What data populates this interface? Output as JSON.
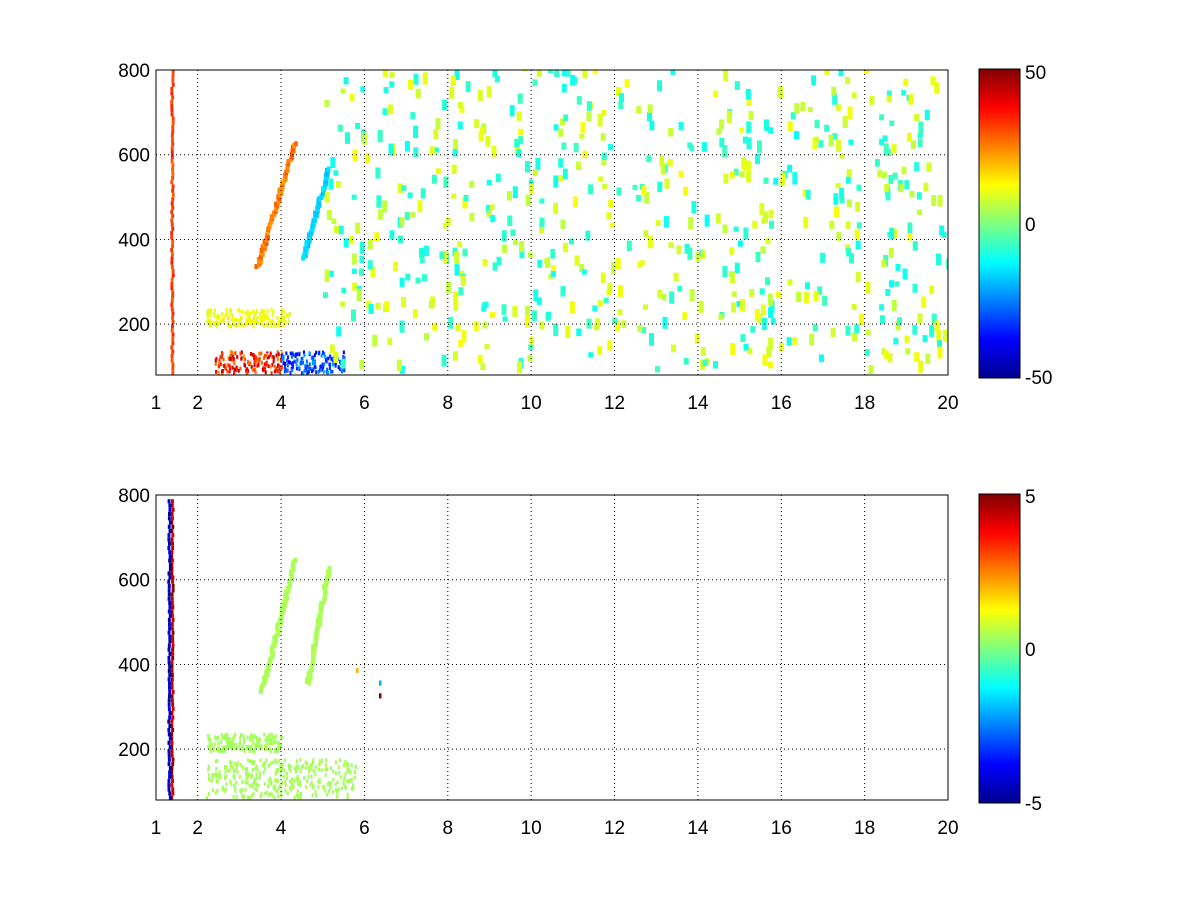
{
  "chart_data": [
    {
      "type": "heatmap",
      "title": "",
      "xlabel": "",
      "ylabel": "",
      "xlim": [
        1,
        20
      ],
      "ylim": [
        80,
        800
      ],
      "xticks": [
        "1",
        "2",
        "4",
        "6",
        "8",
        "10",
        "12",
        "14",
        "16",
        "18",
        "20"
      ],
      "yticks": [
        "200",
        "400",
        "600",
        "800"
      ],
      "grid": true,
      "colormap": "jet",
      "colorbar": {
        "min": -50,
        "max": 50,
        "labels": [
          "50",
          "0",
          "-50"
        ]
      },
      "features": [
        {
          "kind": "ridge",
          "x": 1.4,
          "y": [
            80,
            800
          ],
          "value": 35
        },
        {
          "kind": "band",
          "x": [
            2.4,
            4.0
          ],
          "y": [
            80,
            130
          ],
          "value": 45
        },
        {
          "kind": "band",
          "x": [
            4.0,
            5.5
          ],
          "y": [
            80,
            130
          ],
          "value": -40
        },
        {
          "kind": "ridge",
          "x": [
            3.4,
            4.3
          ],
          "y": [
            330,
            620
          ],
          "value": 30
        },
        {
          "kind": "ridge",
          "x": [
            4.5,
            5.1
          ],
          "y": [
            350,
            560
          ],
          "value": -20
        },
        {
          "kind": "band",
          "x": [
            2.2,
            4.2
          ],
          "y": [
            190,
            230
          ],
          "value": 15
        },
        {
          "kind": "scatter",
          "x": [
            5,
            20
          ],
          "y": [
            80,
            800
          ],
          "value_range": [
            -15,
            15
          ]
        }
      ]
    },
    {
      "type": "heatmap",
      "title": "",
      "xlabel": "",
      "ylabel": "",
      "xlim": [
        1,
        20
      ],
      "ylim": [
        80,
        800
      ],
      "xticks": [
        "1",
        "2",
        "4",
        "6",
        "8",
        "10",
        "12",
        "14",
        "16",
        "18",
        "20"
      ],
      "yticks": [
        "200",
        "400",
        "600",
        "800"
      ],
      "grid": true,
      "colormap": "jet",
      "colorbar": {
        "min": -5,
        "max": 5,
        "labels": [
          "5",
          "0",
          "-5"
        ]
      },
      "features": [
        {
          "kind": "ridge",
          "x": 1.4,
          "y": [
            80,
            790
          ],
          "value": 5
        },
        {
          "kind": "ridge",
          "x": 1.33,
          "y": [
            80,
            790
          ],
          "value": -5
        },
        {
          "kind": "band",
          "x": [
            2.2,
            5.8
          ],
          "y": [
            80,
            170
          ],
          "value": 0.5
        },
        {
          "kind": "band",
          "x": [
            2.2,
            4.0
          ],
          "y": [
            190,
            230
          ],
          "value": 0.5
        },
        {
          "kind": "ridge",
          "x": [
            3.5,
            4.3
          ],
          "y": [
            330,
            640
          ],
          "value": 0.5
        },
        {
          "kind": "ridge",
          "x": [
            4.6,
            5.1
          ],
          "y": [
            350,
            620
          ],
          "value": 0.5
        },
        {
          "kind": "spot",
          "x": 5.8,
          "y": 380,
          "value": 2
        },
        {
          "kind": "spot",
          "x": 6.35,
          "y": 350,
          "value": -2
        },
        {
          "kind": "spot",
          "x": 6.35,
          "y": 320,
          "value": 5
        }
      ]
    }
  ]
}
